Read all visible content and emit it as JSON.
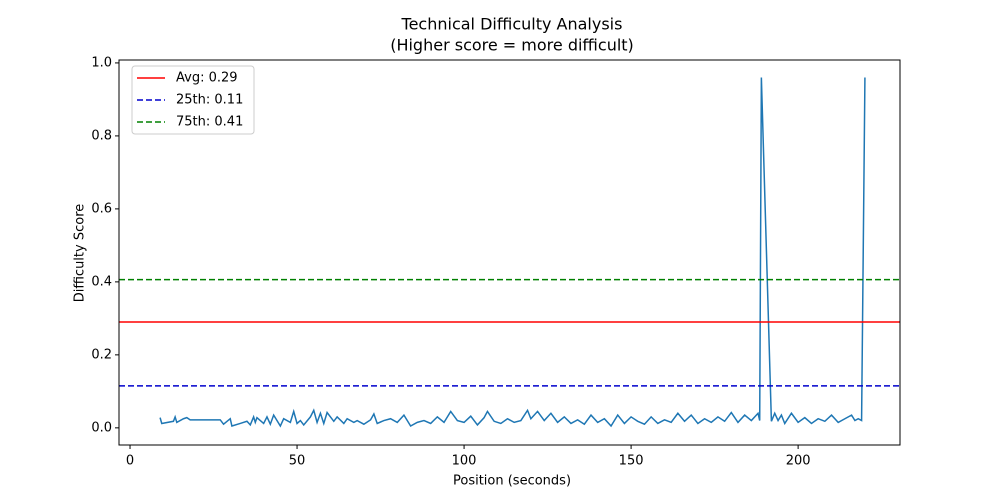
{
  "chart_data": {
    "type": "line",
    "title": "Technical Difficulty Analysis",
    "subtitle": "(Higher score = more difficult)",
    "x_label": "Position (seconds)",
    "y_label": "Difficulty Score",
    "xlim": [
      -3.3,
      230.5
    ],
    "ylim": [
      -0.047,
      1.008
    ],
    "xticks": [
      0,
      50,
      100,
      150,
      200
    ],
    "yticks": [
      {
        "value": 0,
        "label": "0.0"
      },
      0.2,
      0.4,
      0.6,
      0.8,
      {
        "value": 1,
        "label": "1.0"
      }
    ],
    "legend_position": "upper left",
    "x": [
      9,
      9.5,
      13,
      13.5,
      14,
      16,
      17,
      18,
      27,
      28,
      30,
      30.5,
      33,
      35,
      36,
      37,
      37.5,
      38,
      40,
      41,
      42,
      43,
      45,
      46,
      48,
      49,
      50,
      51,
      52,
      54,
      55,
      56,
      57,
      58,
      59,
      61,
      62,
      64,
      65,
      67,
      68,
      70,
      72,
      73,
      74,
      76,
      78,
      80,
      82,
      84,
      86,
      88,
      90,
      92,
      94,
      96,
      98,
      100,
      102,
      104,
      106,
      107,
      109,
      111,
      113,
      115,
      117,
      119,
      120,
      122,
      124,
      126,
      128,
      130,
      132,
      134,
      136,
      138,
      140,
      142,
      144,
      146,
      148,
      150,
      152,
      154,
      156,
      158,
      160,
      162,
      164,
      166,
      168,
      170,
      172,
      174,
      176,
      178,
      180,
      182,
      184,
      186,
      188,
      188.5,
      189,
      192,
      193,
      194,
      195,
      196,
      198,
      200,
      202,
      204,
      206,
      208,
      210,
      212,
      214,
      216,
      217,
      218,
      219,
      220
    ],
    "series": [
      {
        "color": "#1f77b4",
        "values": [
          0.028,
          0.012,
          0.018,
          0.03,
          0.015,
          0.025,
          0.028,
          0.022,
          0.022,
          0.01,
          0.025,
          0.005,
          0.012,
          0.018,
          0.008,
          0.03,
          0.015,
          0.028,
          0.012,
          0.03,
          0.01,
          0.035,
          0.005,
          0.025,
          0.015,
          0.045,
          0.012,
          0.02,
          0.008,
          0.03,
          0.048,
          0.015,
          0.04,
          0.012,
          0.042,
          0.018,
          0.03,
          0.012,
          0.025,
          0.015,
          0.02,
          0.01,
          0.022,
          0.038,
          0.012,
          0.02,
          0.025,
          0.015,
          0.035,
          0.005,
          0.015,
          0.02,
          0.012,
          0.03,
          0.015,
          0.045,
          0.02,
          0.015,
          0.032,
          0.008,
          0.028,
          0.045,
          0.018,
          0.012,
          0.025,
          0.015,
          0.02,
          0.048,
          0.025,
          0.045,
          0.02,
          0.04,
          0.015,
          0.03,
          0.012,
          0.022,
          0.01,
          0.035,
          0.015,
          0.025,
          0.005,
          0.035,
          0.012,
          0.03,
          0.018,
          0.01,
          0.03,
          0.012,
          0.022,
          0.015,
          0.04,
          0.018,
          0.035,
          0.012,
          0.025,
          0.015,
          0.03,
          0.018,
          0.042,
          0.015,
          0.035,
          0.02,
          0.04,
          0.02,
          0.96,
          0.018,
          0.04,
          0.02,
          0.035,
          0.012,
          0.04,
          0.015,
          0.028,
          0.012,
          0.025,
          0.018,
          0.035,
          0.015,
          0.025,
          0.035,
          0.02,
          0.025,
          0.02,
          0.96
        ]
      }
    ],
    "reference_lines": [
      {
        "name": "Avg: 0.29",
        "value": 0.29,
        "color": "#ff0000",
        "dashed": false
      },
      {
        "name": "25th: 0.11",
        "value": 0.115,
        "color": "#0000cc",
        "dashed": true
      },
      {
        "name": "75th: 0.41",
        "value": 0.406,
        "color": "#008000",
        "dashed": true
      }
    ]
  }
}
